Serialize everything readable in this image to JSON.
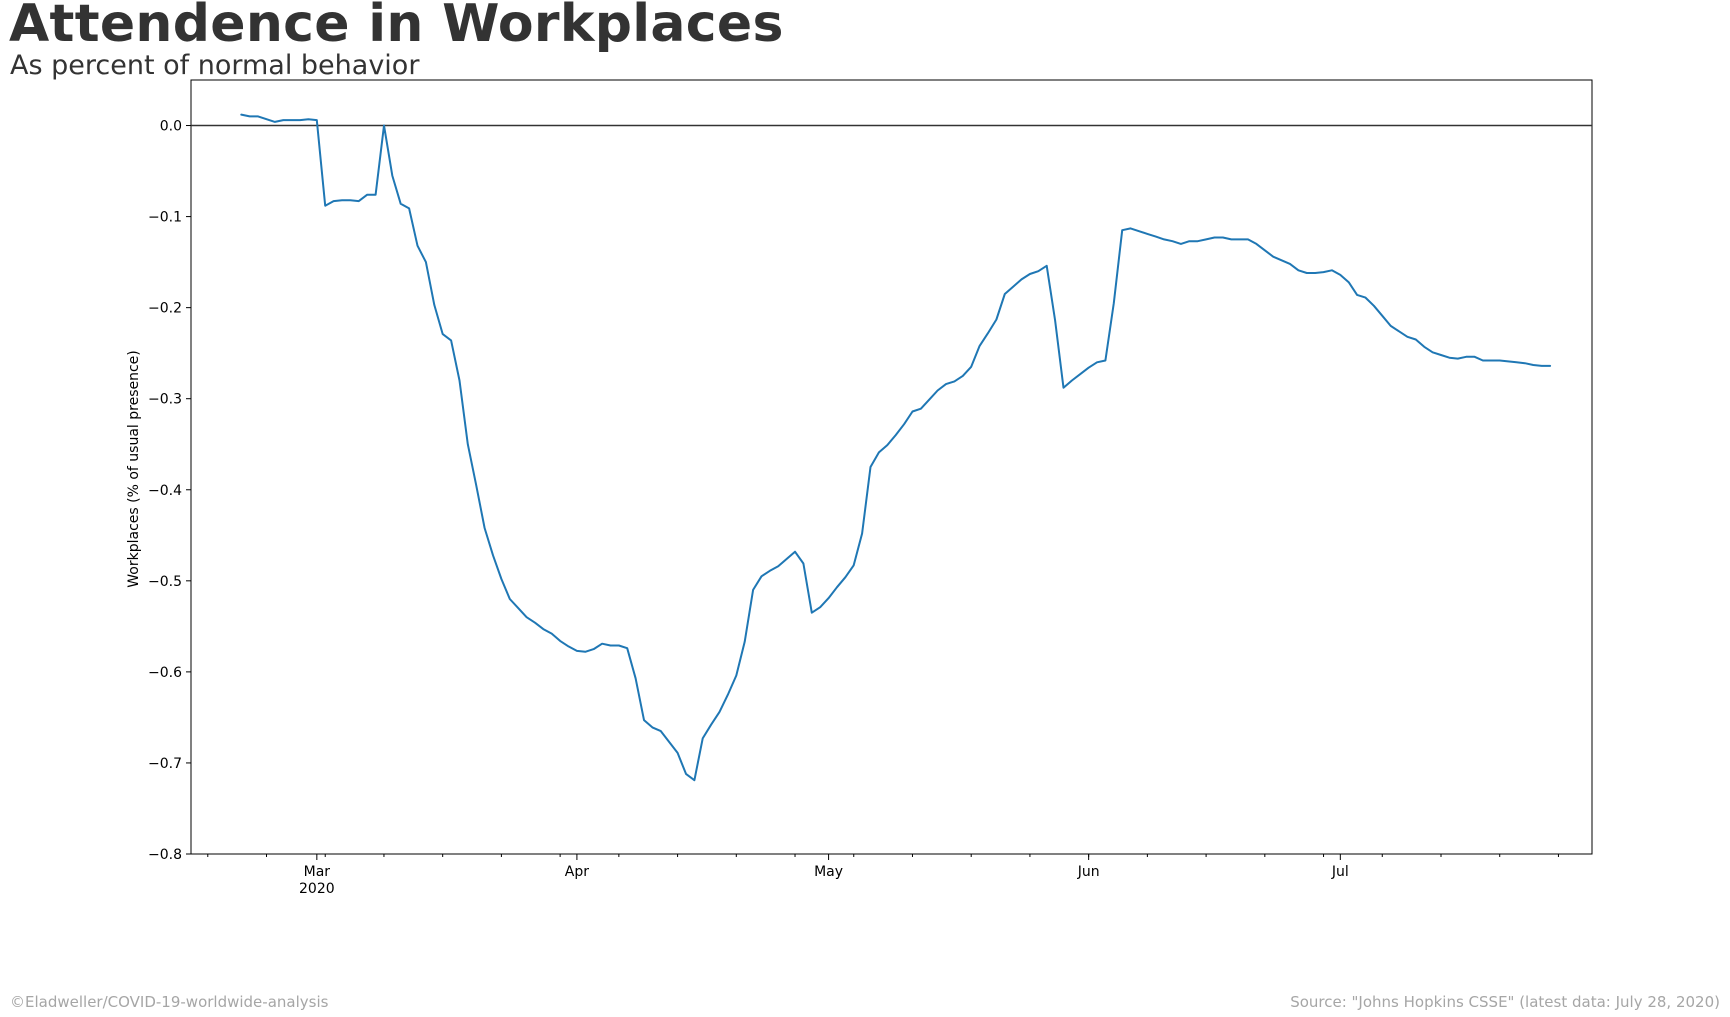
{
  "header": {
    "title": "Attendence in Workplaces",
    "subtitle": "As percent of normal behavior"
  },
  "footer": {
    "left": "©Eladweller/COVID-19-worldwide-analysis",
    "right": "Source: \"Johns Hopkins CSSE\" (latest data: July 28, 2020)"
  },
  "colors": {
    "line": "#1f77b4",
    "text": "#333333",
    "footer": "#a6a6a6"
  },
  "chart_data": {
    "type": "line",
    "title": "Attendence in Workplaces",
    "subtitle": "As percent of normal behavior",
    "xlabel": "",
    "ylabel": "Workplaces (% of usual presence)",
    "ylim": [
      -0.8,
      0.05
    ],
    "xlim": [
      "2020-02-15",
      "2020-07-31"
    ],
    "grid": false,
    "reference_line": 0.0,
    "y_ticks": [
      0.0,
      -0.1,
      -0.2,
      -0.3,
      -0.4,
      -0.5,
      -0.6,
      -0.7,
      -0.8
    ],
    "y_tick_labels": [
      "0.0",
      "−0.1",
      "−0.2",
      "−0.3",
      "−0.4",
      "−0.5",
      "−0.6",
      "−0.7",
      "−0.8"
    ],
    "x_ticks": [
      {
        "date": "2020-03-01",
        "label": "Mar",
        "sublabel": "2020"
      },
      {
        "date": "2020-04-01",
        "label": "Apr",
        "sublabel": ""
      },
      {
        "date": "2020-05-01",
        "label": "May",
        "sublabel": ""
      },
      {
        "date": "2020-06-01",
        "label": "Jun",
        "sublabel": ""
      },
      {
        "date": "2020-07-01",
        "label": "Jul",
        "sublabel": ""
      }
    ],
    "series": [
      {
        "name": "Workplaces",
        "start_date": "2020-02-21",
        "values": [
          0.012,
          0.01,
          0.01,
          0.007,
          0.004,
          0.006,
          0.006,
          0.006,
          0.007,
          0.006,
          -0.088,
          -0.083,
          -0.082,
          -0.082,
          -0.083,
          -0.076,
          -0.076,
          0.0,
          -0.055,
          -0.086,
          -0.091,
          -0.132,
          -0.15,
          -0.197,
          -0.229,
          -0.236,
          -0.28,
          -0.35,
          -0.395,
          -0.442,
          -0.472,
          -0.498,
          -0.52,
          -0.53,
          -0.54,
          -0.546,
          -0.553,
          -0.558,
          -0.566,
          -0.572,
          -0.577,
          -0.578,
          -0.575,
          -0.569,
          -0.571,
          -0.571,
          -0.574,
          -0.607,
          -0.653,
          -0.661,
          -0.665,
          -0.677,
          -0.689,
          -0.712,
          -0.719,
          -0.673,
          -0.658,
          -0.644,
          -0.625,
          -0.604,
          -0.567,
          -0.51,
          -0.495,
          -0.489,
          -0.484,
          -0.476,
          -0.468,
          -0.481,
          -0.535,
          -0.529,
          -0.519,
          -0.507,
          -0.496,
          -0.483,
          -0.448,
          -0.375,
          -0.359,
          -0.351,
          -0.34,
          -0.328,
          -0.314,
          -0.311,
          -0.301,
          -0.291,
          -0.284,
          -0.281,
          -0.275,
          -0.265,
          -0.242,
          -0.228,
          -0.213,
          -0.185,
          -0.177,
          -0.169,
          -0.163,
          -0.16,
          -0.154,
          -0.214,
          -0.288,
          -0.28,
          -0.273,
          -0.266,
          -0.26,
          -0.258,
          -0.195,
          -0.115,
          -0.113,
          -0.116,
          -0.119,
          -0.122,
          -0.125,
          -0.127,
          -0.13,
          -0.127,
          -0.127,
          -0.125,
          -0.123,
          -0.123,
          -0.125,
          -0.125,
          -0.125,
          -0.13,
          -0.137,
          -0.144,
          -0.148,
          -0.152,
          -0.159,
          -0.162,
          -0.162,
          -0.161,
          -0.159,
          -0.164,
          -0.172,
          -0.186,
          -0.189,
          -0.198,
          -0.209,
          -0.22,
          -0.226,
          -0.232,
          -0.235,
          -0.243,
          -0.249,
          -0.252,
          -0.255,
          -0.256,
          -0.254,
          -0.254,
          -0.258,
          -0.258,
          -0.258,
          -0.259,
          -0.26,
          -0.261,
          -0.263,
          -0.264,
          -0.264
        ]
      }
    ]
  }
}
